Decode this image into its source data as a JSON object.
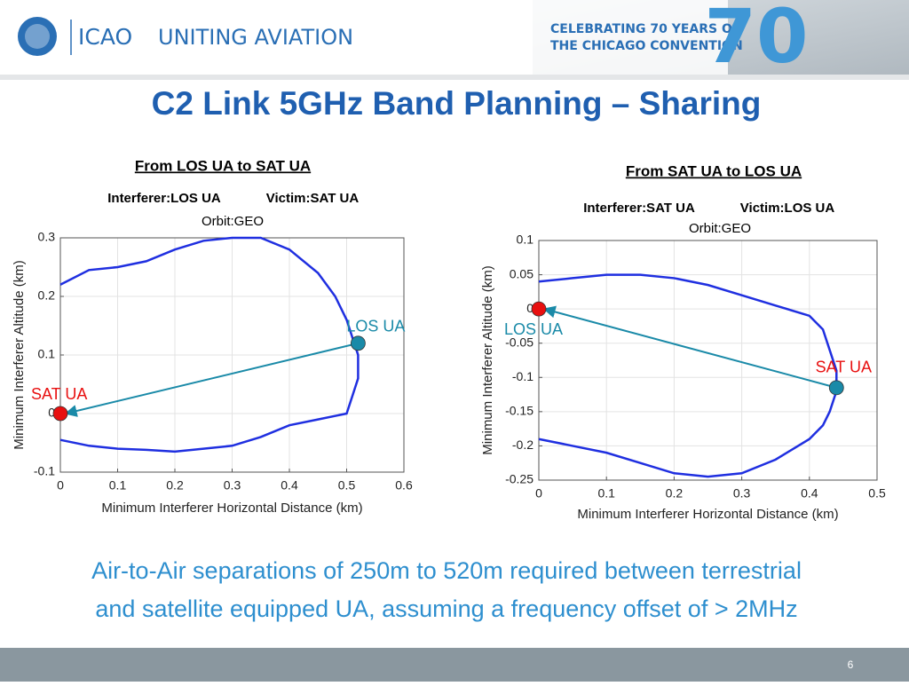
{
  "header": {
    "org": "ICAO",
    "slogan": "UNITING AVIATION",
    "banner_line1": "CELEBRATING 70 YEARS OF",
    "banner_line2": "THE CHICAGO CONVENTION",
    "banner_number": "70"
  },
  "title": "C2 Link 5GHz Band Planning – Sharing",
  "chart_data": [
    {
      "type": "line",
      "title": "From LOS UA to SAT UA",
      "subtitle": [
        "Interferer:LOS UA",
        "Victim:SAT UA",
        "Orbit:GEO"
      ],
      "xlabel": "Minimum Interferer Horizontal Distance (km)",
      "ylabel": "Minimum Interferer Altitude (km)",
      "xlim": [
        0,
        0.6
      ],
      "ylim": [
        -0.1,
        0.3
      ],
      "xticks": [
        0,
        0.1,
        0.2,
        0.3,
        0.4,
        0.5,
        0.6
      ],
      "yticks": [
        -0.1,
        0,
        0.1,
        0.2,
        0.3
      ],
      "grid": true,
      "curve": {
        "color": "#1f2fe0",
        "x": [
          0,
          0.05,
          0.1,
          0.15,
          0.2,
          0.25,
          0.3,
          0.35,
          0.4,
          0.45,
          0.48,
          0.5,
          0.51,
          0.52,
          0.52,
          0.51,
          0.5,
          0.45,
          0.4,
          0.35,
          0.3,
          0.25,
          0.2,
          0.15,
          0.1,
          0.05,
          0
        ],
        "y": [
          0.22,
          0.245,
          0.25,
          0.26,
          0.28,
          0.295,
          0.3,
          0.3,
          0.28,
          0.24,
          0.2,
          0.16,
          0.13,
          0.1,
          0.06,
          0.03,
          0,
          -0.01,
          -0.02,
          -0.04,
          -0.055,
          -0.06,
          -0.065,
          -0.062,
          -0.06,
          -0.055,
          -0.045
        ]
      },
      "points": [
        {
          "name": "SAT UA",
          "color": "#e81010",
          "label_color": "#e81010",
          "x": 0,
          "y": 0
        },
        {
          "name": "LOS UA",
          "color": "#1a8aa8",
          "label_color": "#1a8aa8",
          "x": 0.52,
          "y": 0.12
        }
      ]
    },
    {
      "type": "line",
      "title": "From SAT UA to LOS UA",
      "subtitle": [
        "Interferer:SAT UA",
        "Victim:LOS UA",
        "Orbit:GEO"
      ],
      "xlabel": "Minimum Interferer Horizontal Distance (km)",
      "ylabel": "Minimum Interferer Altitude (km)",
      "xlim": [
        0,
        0.5
      ],
      "ylim": [
        -0.25,
        0.1
      ],
      "xticks": [
        0,
        0.1,
        0.2,
        0.3,
        0.4,
        0.5
      ],
      "yticks": [
        -0.25,
        -0.2,
        -0.15,
        -0.1,
        -0.05,
        0,
        0.05,
        0.1
      ],
      "grid": true,
      "curve": {
        "color": "#1f2fe0",
        "x": [
          0,
          0.05,
          0.1,
          0.15,
          0.2,
          0.25,
          0.3,
          0.35,
          0.4,
          0.42,
          0.43,
          0.44,
          0.44,
          0.43,
          0.42,
          0.4,
          0.35,
          0.3,
          0.25,
          0.2,
          0.15,
          0.1,
          0.05,
          0
        ],
        "y": [
          0.04,
          0.045,
          0.05,
          0.05,
          0.045,
          0.035,
          0.02,
          0.005,
          -0.01,
          -0.03,
          -0.06,
          -0.09,
          -0.12,
          -0.15,
          -0.17,
          -0.19,
          -0.22,
          -0.24,
          -0.245,
          -0.24,
          -0.225,
          -0.21,
          -0.2,
          -0.19
        ]
      },
      "points": [
        {
          "name": "LOS UA",
          "color": "#e81010",
          "label_color": "#1a8aa8",
          "x": 0,
          "y": 0
        },
        {
          "name": "SAT UA",
          "color": "#1a8aa8",
          "label_color": "#e81010",
          "x": 0.44,
          "y": -0.115
        }
      ]
    }
  ],
  "body": [
    "Air-to-Air separations of 250m to 520m required between terrestrial",
    "and satellite equipped UA, assuming a frequency offset of > 2MHz"
  ],
  "page_number": "6"
}
